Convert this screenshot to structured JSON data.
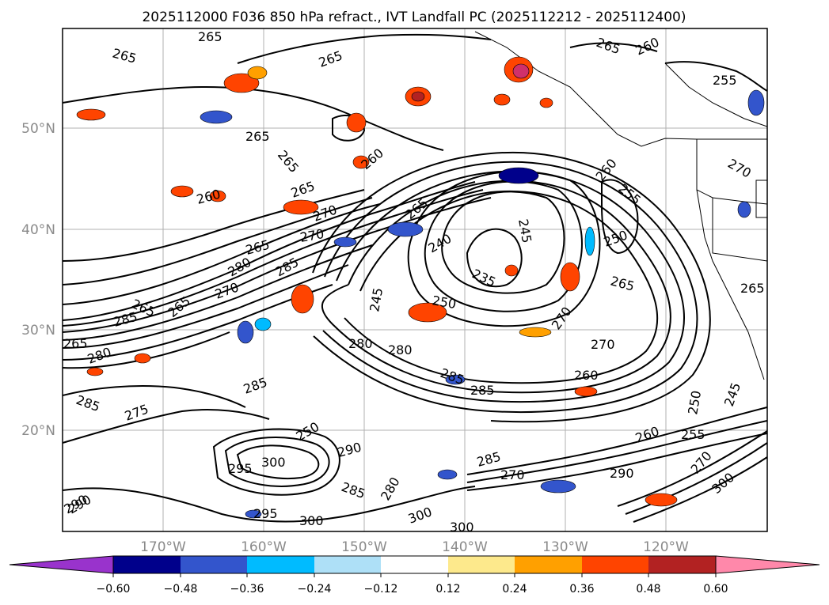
{
  "title": "2025112000 F036 850 hPa refract., IVT Landfall PC (2025112212 - 2025112400)",
  "lat_labels": [
    "50°N",
    "40°N",
    "30°N",
    "20°N"
  ],
  "lon_labels": [
    "170°W",
    "160°W",
    "150°W",
    "140°W",
    "130°W",
    "120°W"
  ],
  "colorbar": {
    "ticks": [
      "−0.60",
      "−0.48",
      "−0.36",
      "−0.24",
      "−0.12",
      "0.12",
      "0.24",
      "0.36",
      "0.48",
      "0.60"
    ],
    "colors": [
      "#9933cc",
      "#00008b",
      "#3355cc",
      "#00bbff",
      "#aee0f7",
      "#ffffff",
      "#fde98c",
      "#ffa000",
      "#ff4400",
      "#b22222",
      "#ff88aa"
    ]
  },
  "contour_labels": [
    "265",
    "265",
    "265",
    "265",
    "265",
    "260",
    "255",
    "265",
    "265",
    "270",
    "260",
    "265",
    "240",
    "245",
    "235",
    "250",
    "245",
    "260",
    "255",
    "250",
    "265",
    "270",
    "270",
    "270",
    "285",
    "265",
    "265",
    "285",
    "280",
    "280",
    "285",
    "260",
    "285",
    "275",
    "285",
    "285",
    "295",
    "250",
    "300",
    "290",
    "300",
    "285",
    "270",
    "285",
    "290",
    "280",
    "300",
    "295",
    "300",
    "290",
    "260",
    "255",
    "250",
    "245",
    "270",
    "300",
    "265",
    "270",
    "280",
    "265",
    "260",
    "280",
    "270",
    "265",
    "290"
  ]
}
